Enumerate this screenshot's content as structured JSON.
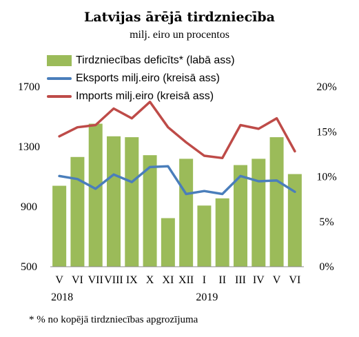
{
  "chart_data": {
    "type": "bar",
    "title": "Latvijas ārējā tirdzniecība",
    "subtitle": "milj. eiro un procentos",
    "categories": [
      "V",
      "VI",
      "VII",
      "VIII",
      "IX",
      "X",
      "XI",
      "XII",
      "I",
      "II",
      "III",
      "IV",
      "V",
      "VI"
    ],
    "year_labels": [
      {
        "label": "2018",
        "category_index": 0
      },
      {
        "label": "2019",
        "category_index": 8
      }
    ],
    "left_axis": {
      "ylim": [
        500,
        1700
      ],
      "ticks": [
        "500",
        "900",
        "1300",
        "1700"
      ]
    },
    "right_axis": {
      "ylim": [
        0,
        20
      ],
      "ticks": [
        "0%",
        "5%",
        "10%",
        "15%",
        "20%"
      ]
    },
    "series": [
      {
        "name": "Tirdzniecības deficīts* (labā ass)",
        "type": "bar",
        "axis": "right",
        "color": "#9bbb59",
        "values": [
          9.0,
          12.2,
          15.9,
          14.5,
          14.4,
          12.4,
          5.4,
          12.0,
          6.8,
          7.6,
          11.3,
          12.0,
          14.4,
          10.3
        ]
      },
      {
        "name": "Eksports milj.eiro (kreisā ass)",
        "type": "line",
        "axis": "left",
        "color": "#4a7ebb",
        "values": [
          1105,
          1085,
          1020,
          1115,
          1065,
          1165,
          1170,
          985,
          1005,
          985,
          1105,
          1070,
          1075,
          1000
        ]
      },
      {
        "name": "Imports milj.eiro (kreisā ass)",
        "type": "line",
        "axis": "left",
        "color": "#be4b48",
        "values": [
          1370,
          1430,
          1445,
          1555,
          1490,
          1600,
          1430,
          1330,
          1240,
          1225,
          1445,
          1420,
          1490,
          1270
        ]
      }
    ],
    "grid": false,
    "legend_position": "top-left"
  },
  "footnote": "*   % no kopējā tirdzniecības apgrozījuma"
}
